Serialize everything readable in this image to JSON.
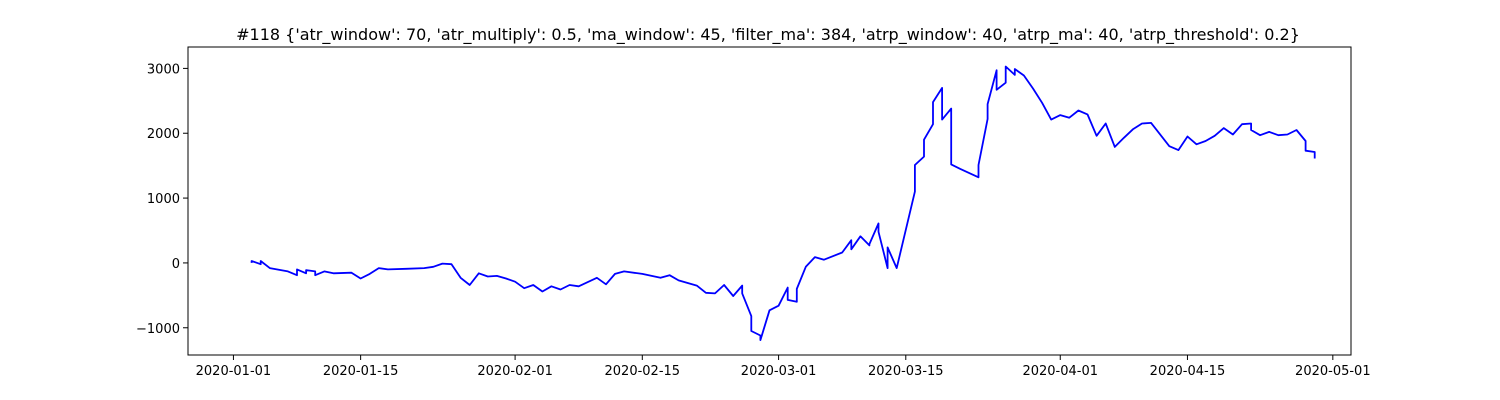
{
  "chart_data": {
    "type": "line",
    "title": "#118 {'atr_window': 70, 'atr_multiply': 0.5, 'ma_window': 45, 'filter_ma': 384, 'atrp_window': 40, 'atrp_ma': 40, 'atrp_threshold': 0.2}",
    "xlabel": "",
    "ylabel": "",
    "xlim": [
      "2019-12-27",
      "2020-05-03"
    ],
    "ylim": [
      -1420,
      3330
    ],
    "xticks": [
      "2020-01-01",
      "2020-01-15",
      "2020-02-01",
      "2020-02-15",
      "2020-03-01",
      "2020-03-15",
      "2020-04-01",
      "2020-04-15",
      "2020-05-01"
    ],
    "yticks": [
      -1000,
      0,
      1000,
      2000,
      3000
    ],
    "grid": false,
    "legend": "none",
    "series": [
      {
        "color": "#0000ff",
        "x": [
          "2020-01-03",
          "2020-01-03",
          "2020-01-04",
          "2020-01-04",
          "2020-01-05",
          "2020-01-07",
          "2020-01-08",
          "2020-01-08",
          "2020-01-09",
          "2020-01-09",
          "2020-01-10",
          "2020-01-10",
          "2020-01-11",
          "2020-01-12",
          "2020-01-14",
          "2020-01-15",
          "2020-01-16",
          "2020-01-17",
          "2020-01-18",
          "2020-01-20",
          "2020-01-22",
          "2020-01-23",
          "2020-01-24",
          "2020-01-25",
          "2020-01-26",
          "2020-01-27",
          "2020-01-28",
          "2020-01-29",
          "2020-01-30",
          "2020-01-31",
          "2020-02-01",
          "2020-02-02",
          "2020-02-03",
          "2020-02-04",
          "2020-02-05",
          "2020-02-06",
          "2020-02-07",
          "2020-02-08",
          "2020-02-10",
          "2020-02-11",
          "2020-02-12",
          "2020-02-13",
          "2020-02-15",
          "2020-02-17",
          "2020-02-18",
          "2020-02-19",
          "2020-02-20",
          "2020-02-21",
          "2020-02-22",
          "2020-02-23",
          "2020-02-24",
          "2020-02-25",
          "2020-02-26",
          "2020-02-26",
          "2020-02-27",
          "2020-02-27",
          "2020-02-28",
          "2020-02-28",
          "2020-02-29",
          "2020-03-01",
          "2020-03-02",
          "2020-03-02",
          "2020-03-03",
          "2020-03-03",
          "2020-03-04",
          "2020-03-05",
          "2020-03-06",
          "2020-03-08",
          "2020-03-09",
          "2020-03-09",
          "2020-03-10",
          "2020-03-11",
          "2020-03-11",
          "2020-03-12",
          "2020-03-12",
          "2020-03-13",
          "2020-03-13",
          "2020-03-14",
          "2020-03-16",
          "2020-03-16",
          "2020-03-17",
          "2020-03-17",
          "2020-03-18",
          "2020-03-18",
          "2020-03-19",
          "2020-03-19",
          "2020-03-20",
          "2020-03-20",
          "2020-03-21",
          "2020-03-23",
          "2020-03-23",
          "2020-03-24",
          "2020-03-24",
          "2020-03-25",
          "2020-03-25",
          "2020-03-26",
          "2020-03-26",
          "2020-03-27",
          "2020-03-27",
          "2020-03-28",
          "2020-03-29",
          "2020-03-30",
          "2020-03-31",
          "2020-04-01",
          "2020-04-02",
          "2020-04-03",
          "2020-04-04",
          "2020-04-05",
          "2020-04-06",
          "2020-04-07",
          "2020-04-08",
          "2020-04-09",
          "2020-04-10",
          "2020-04-11",
          "2020-04-13",
          "2020-04-14",
          "2020-04-15",
          "2020-04-16",
          "2020-04-17",
          "2020-04-18",
          "2020-04-19",
          "2020-04-20",
          "2020-04-21",
          "2020-04-22",
          "2020-04-22",
          "2020-04-23",
          "2020-04-24",
          "2020-04-25",
          "2020-04-26",
          "2020-04-27",
          "2020-04-28",
          "2020-04-28",
          "2020-04-29",
          "2020-04-29"
        ],
        "y": [
          0,
          30,
          -20,
          30,
          -80,
          -130,
          -190,
          -100,
          -160,
          -110,
          -130,
          -190,
          -130,
          -160,
          -150,
          -240,
          -170,
          -80,
          -100,
          -90,
          -80,
          -60,
          -10,
          -20,
          -230,
          -340,
          -160,
          -210,
          -200,
          -240,
          -290,
          -390,
          -340,
          -440,
          -360,
          -410,
          -340,
          -360,
          -230,
          -330,
          -170,
          -130,
          -170,
          -230,
          -190,
          -270,
          -310,
          -350,
          -460,
          -470,
          -340,
          -510,
          -350,
          -470,
          -820,
          -1050,
          -1120,
          -1190,
          -730,
          -660,
          -380,
          -570,
          -600,
          -400,
          -60,
          90,
          50,
          160,
          350,
          210,
          410,
          270,
          290,
          610,
          480,
          -80,
          240,
          -80,
          1100,
          1510,
          1640,
          1900,
          2140,
          2480,
          2700,
          2210,
          2380,
          1520,
          1450,
          1320,
          1510,
          2220,
          2450,
          2970,
          2670,
          2780,
          3030,
          2900,
          2990,
          2890,
          2690,
          2470,
          2210,
          2280,
          2240,
          2350,
          2290,
          1960,
          2150,
          1790,
          1930,
          2060,
          2150,
          2160,
          1800,
          1740,
          1950,
          1830,
          1880,
          1960,
          2080,
          1980,
          2140,
          2150,
          2050,
          1970,
          2020,
          1970,
          1980,
          2050,
          1880,
          1730,
          1710,
          1610
        ]
      }
    ]
  }
}
